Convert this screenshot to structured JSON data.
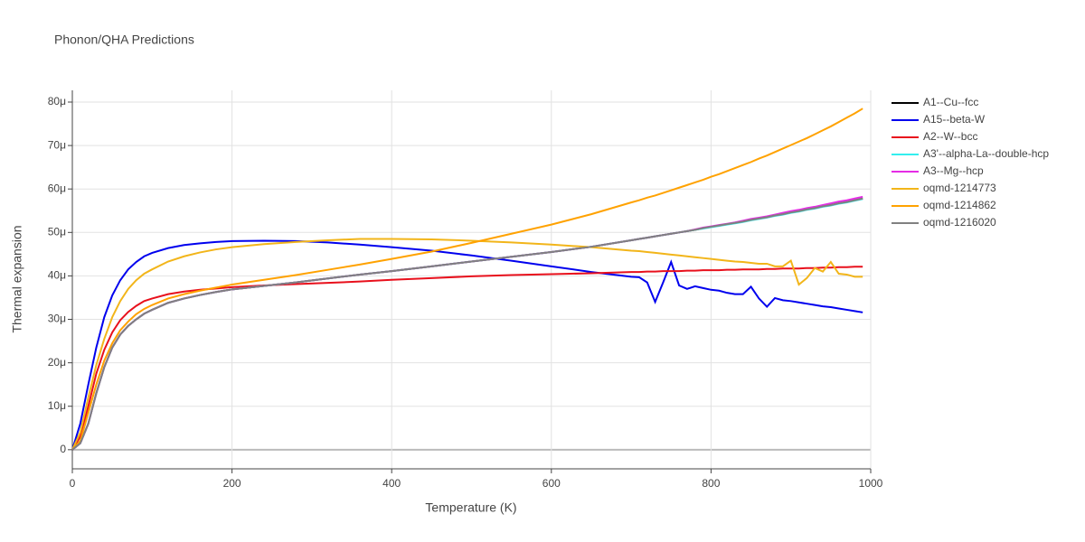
{
  "chart_data": {
    "type": "line",
    "title": "Phonon/QHA Predictions",
    "x_label": "Temperature (K)",
    "y_label": "Thermal expansion",
    "xlim": [
      0,
      1000
    ],
    "xticks": [
      0,
      200,
      400,
      600,
      800,
      1000
    ],
    "ylim": [
      -4.4,
      82.7
    ],
    "yticks": [
      0,
      {
        "value": 10,
        "label": "10μ"
      },
      {
        "value": 20,
        "label": "20μ"
      },
      {
        "value": 30,
        "label": "30μ"
      },
      {
        "value": 40,
        "label": "40μ"
      },
      {
        "value": 50,
        "label": "50μ"
      },
      {
        "value": 60,
        "label": "60μ"
      },
      {
        "value": 70,
        "label": "70μ"
      },
      {
        "value": 80,
        "label": "80μ"
      }
    ],
    "grid": true,
    "legend": "right",
    "x": [
      0,
      10,
      20,
      30,
      40,
      50,
      60,
      70,
      80,
      90,
      100,
      120,
      140,
      160,
      180,
      200,
      240,
      280,
      320,
      360,
      400,
      450,
      500,
      550,
      600,
      650,
      700,
      710,
      720,
      730,
      740,
      750,
      760,
      770,
      780,
      790,
      800,
      810,
      820,
      830,
      840,
      850,
      860,
      870,
      880,
      890,
      900,
      910,
      920,
      930,
      940,
      950,
      960,
      970,
      980,
      990
    ],
    "series": [
      {
        "name": "A1--Cu--fcc",
        "color": "#000000",
        "values": [
          0,
          1.5,
          6,
          13,
          19,
          23.5,
          26.5,
          28.5,
          30,
          31.3,
          32.2,
          33.8,
          34.8,
          35.6,
          36.3,
          36.9,
          37.7,
          38.5,
          39.4,
          40.3,
          41.1,
          42.2,
          43.3,
          44.4,
          45.5,
          46.7,
          48.2,
          48.5,
          48.8,
          49.1,
          49.4,
          49.7,
          50.0,
          50.3,
          50.6,
          51.0,
          51.3,
          51.6,
          51.9,
          52.2,
          52.5,
          52.9,
          53.2,
          53.5,
          53.9,
          54.2,
          54.6,
          54.9,
          55.3,
          55.6,
          56.0,
          56.3,
          56.7,
          57.0,
          57.4,
          57.8
        ]
      },
      {
        "name": "A15--beta-W",
        "color": "#0000ee",
        "values": [
          0,
          6,
          15,
          23.5,
          30.5,
          35.5,
          39,
          41.5,
          43.2,
          44.5,
          45.3,
          46.4,
          47.1,
          47.5,
          47.8,
          48,
          48.1,
          48,
          47.7,
          47.2,
          46.6,
          45.8,
          44.7,
          43.5,
          42.2,
          40.9,
          39.8,
          39.7,
          38.5,
          34,
          38.5,
          43.2,
          37.8,
          37,
          37.6,
          37.2,
          36.8,
          36.6,
          36.1,
          35.8,
          35.8,
          37.5,
          34.8,
          32.9,
          34.9,
          34.4,
          34.2,
          33.9,
          33.6,
          33.3,
          33,
          32.8,
          32.5,
          32.2,
          31.9,
          31.6
        ]
      },
      {
        "name": "A2--W--bcc",
        "color": "#e8101c",
        "values": [
          0,
          3,
          10,
          17.5,
          23,
          27,
          29.8,
          31.7,
          33.1,
          34.2,
          34.8,
          35.8,
          36.4,
          36.8,
          37.1,
          37.4,
          37.8,
          38.1,
          38.4,
          38.7,
          39.1,
          39.5,
          39.9,
          40.2,
          40.4,
          40.6,
          40.9,
          40.9,
          41.0,
          41.0,
          41.1,
          41.1,
          41.1,
          41.2,
          41.2,
          41.3,
          41.3,
          41.3,
          41.4,
          41.4,
          41.5,
          41.5,
          41.5,
          41.6,
          41.6,
          41.7,
          41.7,
          41.7,
          41.8,
          41.8,
          41.9,
          41.9,
          42.0,
          42.0,
          42.1,
          42.1
        ]
      },
      {
        "name": "A3'--alpha-La--double-hcp",
        "color": "#33eeee",
        "values": [
          0,
          1.5,
          6,
          13,
          19,
          23.5,
          26.5,
          28.5,
          30,
          31.3,
          32.2,
          33.8,
          34.8,
          35.6,
          36.3,
          36.9,
          37.7,
          38.5,
          39.4,
          40.3,
          41.1,
          42.2,
          43.3,
          44.4,
          45.5,
          46.7,
          48.2,
          48.5,
          48.8,
          49.1,
          49.4,
          49.7,
          50.0,
          50.3,
          50.6,
          50.9,
          51.2,
          51.5,
          51.8,
          52.1,
          52.4,
          52.8,
          53.1,
          53.4,
          53.8,
          54.1,
          54.5,
          54.8,
          55.2,
          55.5,
          55.9,
          56.2,
          56.6,
          56.9,
          57.3,
          57.7
        ]
      },
      {
        "name": "A3--Mg--hcp",
        "color": "#e52ce5",
        "values": [
          0,
          1.5,
          6,
          13,
          19,
          23.5,
          26.5,
          28.5,
          30,
          31.3,
          32.2,
          33.8,
          34.8,
          35.6,
          36.3,
          36.9,
          37.7,
          38.5,
          39.4,
          40.3,
          41.1,
          42.2,
          43.3,
          44.4,
          45.5,
          46.7,
          48.2,
          48.5,
          48.8,
          49.1,
          49.4,
          49.7,
          50.0,
          50.3,
          50.7,
          51.1,
          51.4,
          51.7,
          52.0,
          52.3,
          52.7,
          53.1,
          53.4,
          53.7,
          54.1,
          54.5,
          54.9,
          55.2,
          55.6,
          55.9,
          56.3,
          56.7,
          57.1,
          57.4,
          57.8,
          58.2
        ]
      },
      {
        "name": "oqmd-1214773",
        "color": "#f2b51a",
        "values": [
          0,
          4,
          12,
          19.5,
          25.5,
          30.5,
          34.2,
          37,
          39,
          40.5,
          41.5,
          43.3,
          44.5,
          45.4,
          46.1,
          46.6,
          47.3,
          47.8,
          48.2,
          48.5,
          48.5,
          48.4,
          48.1,
          47.7,
          47.2,
          46.6,
          45.8,
          45.7,
          45.5,
          45.3,
          45.1,
          44.9,
          44.7,
          44.5,
          44.3,
          44.1,
          43.9,
          43.7,
          43.5,
          43.3,
          43.2,
          43.0,
          42.8,
          42.8,
          42.2,
          42.2,
          43.5,
          38,
          39.5,
          41.8,
          41,
          43.2,
          40.5,
          40.3,
          39.8,
          39.8
        ]
      },
      {
        "name": "oqmd-1214862",
        "color": "#ffa200",
        "values": [
          0,
          2,
          8.5,
          15,
          20.5,
          24.5,
          27.5,
          29.5,
          31.2,
          32.4,
          33.3,
          34.8,
          35.8,
          36.6,
          37.3,
          38,
          39.1,
          40.2,
          41.4,
          42.6,
          43.9,
          45.6,
          47.6,
          49.7,
          51.8,
          54.2,
          56.9,
          57.4,
          58,
          58.5,
          59.1,
          59.7,
          60.3,
          60.9,
          61.5,
          62.1,
          62.8,
          63.4,
          64.1,
          64.8,
          65.5,
          66.2,
          67,
          67.7,
          68.5,
          69.3,
          70.1,
          70.9,
          71.7,
          72.6,
          73.5,
          74.4,
          75.4,
          76.4,
          77.4,
          78.5
        ]
      },
      {
        "name": "oqmd-1216020",
        "color": "#808080",
        "values": [
          0,
          1.5,
          6,
          13,
          19,
          23.5,
          26.5,
          28.5,
          30,
          31.3,
          32.2,
          33.8,
          34.8,
          35.6,
          36.3,
          36.9,
          37.7,
          38.5,
          39.4,
          40.3,
          41.1,
          42.2,
          43.3,
          44.4,
          45.5,
          46.7,
          48.2,
          48.5,
          48.8,
          49.1,
          49.4,
          49.7,
          50.0,
          50.3,
          50.6,
          51.0,
          51.3,
          51.6,
          51.9,
          52.2,
          52.5,
          52.9,
          53.2,
          53.5,
          53.9,
          54.2,
          54.6,
          54.9,
          55.3,
          55.6,
          56.0,
          56.3,
          56.7,
          57.0,
          57.4,
          57.8
        ]
      }
    ]
  }
}
